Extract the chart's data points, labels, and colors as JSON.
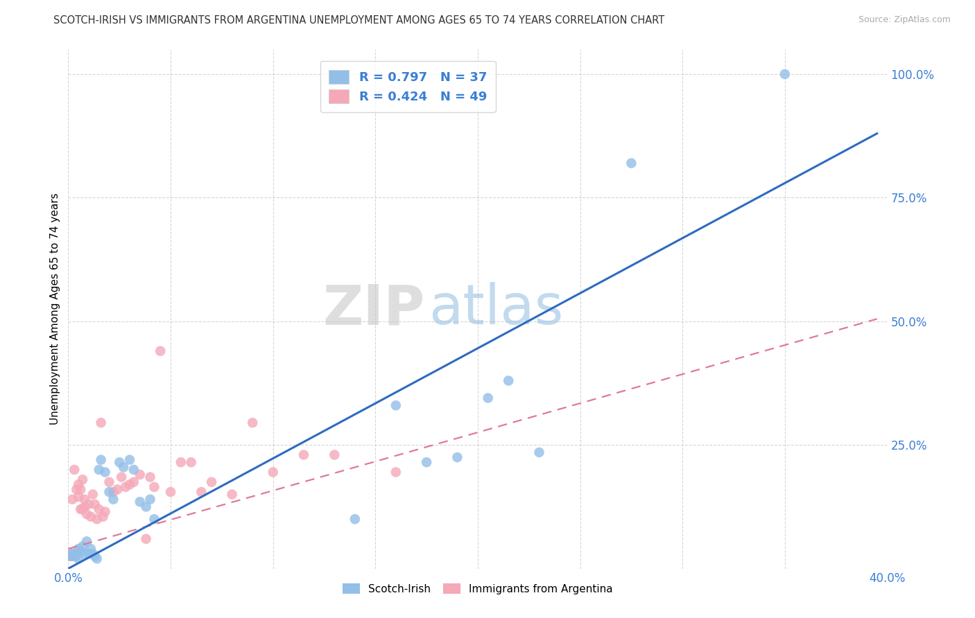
{
  "title": "SCOTCH-IRISH VS IMMIGRANTS FROM ARGENTINA UNEMPLOYMENT AMONG AGES 65 TO 74 YEARS CORRELATION CHART",
  "source": "Source: ZipAtlas.com",
  "ylabel": "Unemployment Among Ages 65 to 74 years",
  "xlim": [
    0.0,
    0.4
  ],
  "ylim": [
    0.0,
    1.05
  ],
  "xticks": [
    0.0,
    0.05,
    0.1,
    0.15,
    0.2,
    0.25,
    0.3,
    0.35,
    0.4
  ],
  "yticks": [
    0.0,
    0.25,
    0.5,
    0.75,
    1.0
  ],
  "legend_blue_r": "R = 0.797",
  "legend_blue_n": "N = 37",
  "legend_pink_r": "R = 0.424",
  "legend_pink_n": "N = 49",
  "legend_label_blue": "Scotch-Irish",
  "legend_label_pink": "Immigrants from Argentina",
  "watermark_zip": "ZIP",
  "watermark_atlas": "atlas",
  "blue_color": "#92bfe8",
  "pink_color": "#f4a8b8",
  "regression_blue_color": "#2e6bbf",
  "regression_pink_color": "#e07898",
  "blue_scatter_x": [
    0.001,
    0.002,
    0.003,
    0.004,
    0.005,
    0.005,
    0.006,
    0.007,
    0.008,
    0.009,
    0.01,
    0.011,
    0.012,
    0.013,
    0.014,
    0.015,
    0.016,
    0.018,
    0.02,
    0.022,
    0.025,
    0.027,
    0.03,
    0.032,
    0.035,
    0.038,
    0.04,
    0.042,
    0.14,
    0.16,
    0.175,
    0.19,
    0.205,
    0.215,
    0.23,
    0.275,
    0.35
  ],
  "blue_scatter_y": [
    0.025,
    0.03,
    0.025,
    0.03,
    0.02,
    0.04,
    0.035,
    0.045,
    0.03,
    0.055,
    0.03,
    0.04,
    0.03,
    0.025,
    0.02,
    0.2,
    0.22,
    0.195,
    0.155,
    0.14,
    0.215,
    0.205,
    0.22,
    0.2,
    0.135,
    0.125,
    0.14,
    0.1,
    0.1,
    0.33,
    0.215,
    0.225,
    0.345,
    0.38,
    0.235,
    0.82,
    1.0
  ],
  "pink_scatter_x": [
    0.001,
    0.001,
    0.002,
    0.002,
    0.003,
    0.003,
    0.004,
    0.004,
    0.005,
    0.005,
    0.006,
    0.006,
    0.007,
    0.007,
    0.008,
    0.008,
    0.009,
    0.01,
    0.011,
    0.012,
    0.013,
    0.014,
    0.015,
    0.016,
    0.017,
    0.018,
    0.02,
    0.022,
    0.024,
    0.026,
    0.028,
    0.03,
    0.032,
    0.035,
    0.038,
    0.04,
    0.042,
    0.045,
    0.05,
    0.055,
    0.06,
    0.065,
    0.07,
    0.08,
    0.09,
    0.1,
    0.115,
    0.13,
    0.16
  ],
  "pink_scatter_y": [
    0.025,
    0.03,
    0.025,
    0.14,
    0.03,
    0.2,
    0.025,
    0.16,
    0.145,
    0.17,
    0.12,
    0.16,
    0.12,
    0.18,
    0.14,
    0.125,
    0.11,
    0.13,
    0.105,
    0.15,
    0.13,
    0.1,
    0.12,
    0.295,
    0.105,
    0.115,
    0.175,
    0.155,
    0.16,
    0.185,
    0.165,
    0.17,
    0.175,
    0.19,
    0.06,
    0.185,
    0.165,
    0.44,
    0.155,
    0.215,
    0.215,
    0.155,
    0.175,
    0.15,
    0.295,
    0.195,
    0.23,
    0.23,
    0.195
  ],
  "blue_line_x": [
    0.0,
    0.395
  ],
  "blue_line_y": [
    0.0,
    0.88
  ],
  "pink_line_x": [
    0.0,
    0.395
  ],
  "pink_line_y": [
    0.04,
    0.505
  ],
  "background_color": "#ffffff",
  "grid_color": "#cccccc",
  "title_color": "#333333",
  "axis_color": "#3a7fd5"
}
